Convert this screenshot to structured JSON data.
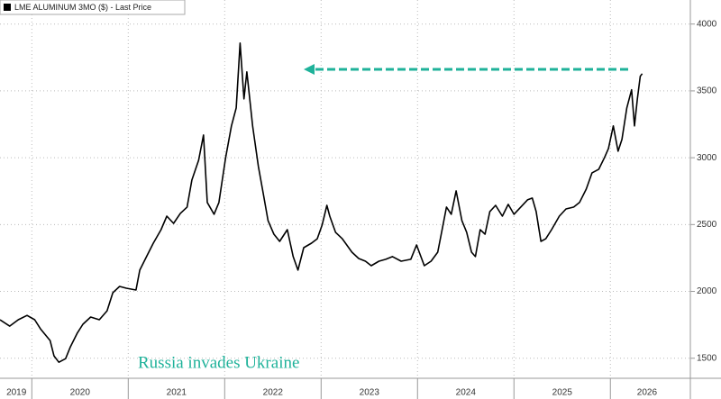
{
  "chart_data": {
    "type": "line",
    "legend": "top-left",
    "grid": true,
    "annotations": [
      {
        "text": "Russia invades Ukraine"
      }
    ],
    "x": [
      2019.67,
      2019.77,
      2019.86,
      2019.95,
      2020.03,
      2020.09,
      2020.19,
      2020.23,
      2020.28,
      2020.35,
      2020.4,
      2020.47,
      2020.53,
      2020.61,
      2020.7,
      2020.78,
      2020.84,
      2020.91,
      2020.98,
      2021.08,
      2021.12,
      2021.19,
      2021.26,
      2021.34,
      2021.4,
      2021.47,
      2021.54,
      2021.61,
      2021.66,
      2021.73,
      2021.78,
      2021.82,
      2021.89,
      2021.94,
      2022.01,
      2022.07,
      2022.12,
      2022.16,
      2022.2,
      2022.23,
      2022.29,
      2022.35,
      2022.4,
      2022.45,
      2022.51,
      2022.57,
      2022.65,
      2022.71,
      2022.76,
      2022.82,
      2022.9,
      2022.96,
      2023.01,
      2023.06,
      2023.09,
      2023.15,
      2023.22,
      2023.32,
      2023.39,
      2023.46,
      2023.52,
      2023.6,
      2023.67,
      2023.74,
      2023.83,
      2023.93,
      2023.99,
      2024.07,
      2024.14,
      2024.21,
      2024.25,
      2024.3,
      2024.35,
      2024.4,
      2024.46,
      2024.51,
      2024.56,
      2024.6,
      2024.65,
      2024.7,
      2024.75,
      2024.81,
      2024.88,
      2024.94,
      2025.0,
      2025.07,
      2025.14,
      2025.19,
      2025.23,
      2025.28,
      2025.33,
      2025.39,
      2025.47,
      2025.54,
      2025.62,
      2025.68,
      2025.75,
      2025.81,
      2025.88,
      2025.94,
      2025.98,
      2026.03,
      2026.08,
      2026.12,
      2026.17,
      2026.22,
      2026.25,
      2026.28,
      2026.31,
      2026.33
    ],
    "series": [
      {
        "name": "LME ALUMINUM 3MO ($) - Last Price",
        "color": "#000000",
        "values": [
          1788,
          1740,
          1788,
          1820,
          1788,
          1720,
          1632,
          1518,
          1470,
          1497,
          1585,
          1686,
          1754,
          1808,
          1788,
          1855,
          1990,
          2037,
          2024,
          2010,
          2159,
          2260,
          2361,
          2462,
          2563,
          2509,
          2584,
          2631,
          2833,
          2981,
          3170,
          2665,
          2577,
          2665,
          3002,
          3238,
          3373,
          3858,
          3440,
          3642,
          3238,
          2934,
          2732,
          2530,
          2428,
          2374,
          2462,
          2260,
          2159,
          2327,
          2361,
          2394,
          2496,
          2644,
          2563,
          2442,
          2394,
          2293,
          2246,
          2226,
          2192,
          2226,
          2240,
          2260,
          2226,
          2240,
          2347,
          2192,
          2226,
          2293,
          2442,
          2631,
          2577,
          2752,
          2530,
          2442,
          2293,
          2260,
          2462,
          2428,
          2597,
          2644,
          2563,
          2651,
          2577,
          2631,
          2685,
          2698,
          2597,
          2374,
          2394,
          2462,
          2563,
          2617,
          2631,
          2665,
          2766,
          2887,
          2914,
          3002,
          3069,
          3238,
          3049,
          3137,
          3373,
          3508,
          3238,
          3440,
          3609,
          3629
        ]
      }
    ],
    "xlim": [
      2019.67,
      2026.82
    ],
    "xticks": [
      {
        "value": 2019.84,
        "label": "2019"
      },
      {
        "value": 2020.5,
        "label": "2020"
      },
      {
        "value": 2021.5,
        "label": "2021"
      },
      {
        "value": 2022.5,
        "label": "2022"
      },
      {
        "value": 2023.5,
        "label": "2023"
      },
      {
        "value": 2024.5,
        "label": "2024"
      },
      {
        "value": 2025.5,
        "label": "2025"
      },
      {
        "value": 2026.38,
        "label": "2026"
      }
    ],
    "ylim": [
      1350,
      4180
    ],
    "yticks": [
      1500,
      2000,
      2500,
      3000,
      3500,
      4000
    ]
  }
}
